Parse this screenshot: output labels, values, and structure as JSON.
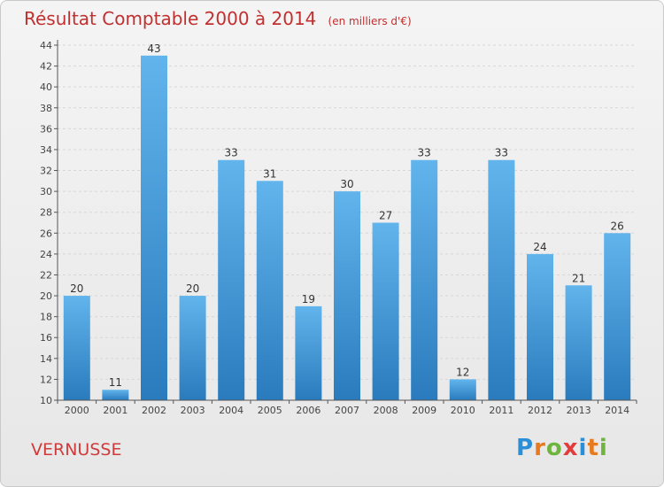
{
  "title": "Résultat Comptable 2000 à 2014",
  "subtitle": "(en milliers d'€)",
  "place": "VERNUSSE",
  "brand": {
    "letters": [
      "P",
      "r",
      "o",
      "x",
      "i",
      "t",
      "i"
    ],
    "colors": [
      "#2a8fd6",
      "#e87a1e",
      "#6fb43f",
      "#e23c3c",
      "#2a8fd6",
      "#e87a1e",
      "#6fb43f"
    ]
  },
  "colors": {
    "bar_light": "#62b4ec",
    "bar_dark": "#2a7bbd",
    "grid": "#d7d7d7",
    "title": "#c13030"
  },
  "chart_data": {
    "type": "bar",
    "title": "Résultat Comptable 2000 à 2014",
    "subtitle": "(en milliers d'€)",
    "categories": [
      "2000",
      "2001",
      "2002",
      "2003",
      "2004",
      "2005",
      "2006",
      "2007",
      "2008",
      "2009",
      "2010",
      "2011",
      "2012",
      "2013",
      "2014"
    ],
    "values": [
      20,
      11,
      43,
      20,
      33,
      31,
      19,
      30,
      27,
      33,
      12,
      33,
      24,
      21,
      26
    ],
    "ylim": [
      10,
      44
    ],
    "yticks": [
      10,
      12,
      14,
      16,
      18,
      20,
      22,
      24,
      26,
      28,
      30,
      32,
      34,
      36,
      38,
      40,
      42,
      44
    ],
    "grid": true,
    "xlabel": "",
    "ylabel": ""
  }
}
